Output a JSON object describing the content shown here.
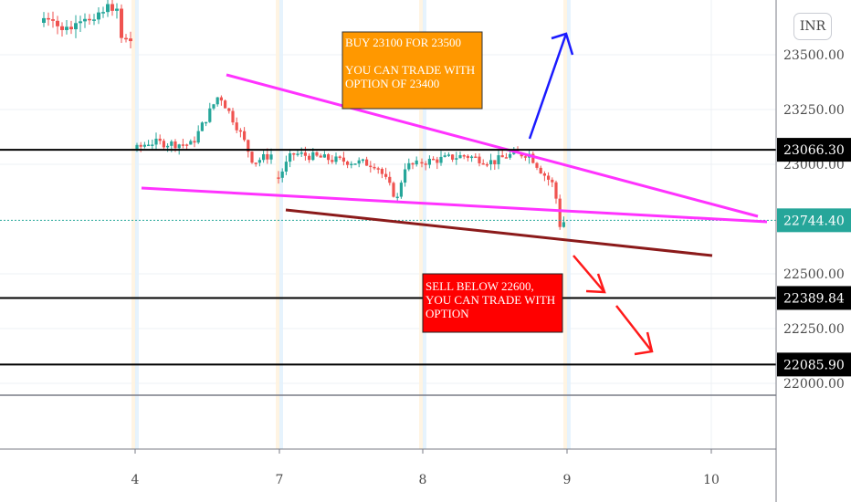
{
  "currency_label": "INR",
  "chart_data": {
    "type": "candlestick",
    "y_ticks": [
      "23500.00",
      "23250.00",
      "23000.00",
      "22500.00",
      "22250.00",
      "22000.00"
    ],
    "x_ticks": [
      "4",
      "7",
      "8",
      "9",
      "10"
    ],
    "current_price": "22744.40",
    "levels": [
      "23066.30",
      "22389.84",
      "22085.90"
    ],
    "annotations": {
      "buy": [
        "BUY 23100 FOR 23500",
        "",
        "YOU CAN TRADE WITH",
        "OPTION OF 23400"
      ],
      "sell": [
        "SELL BELOW 22600,",
        "YOU CAN TRADE WITH",
        "OPTION"
      ]
    },
    "colors": {
      "up": "#26a69a",
      "down": "#ef5350",
      "buy_box": "#ff9800",
      "sell_box": "#ff0000",
      "wedge": "#ff33ff",
      "support": "#8b1a1a",
      "price_line": "#26a69a",
      "level_line": "#000000"
    }
  }
}
